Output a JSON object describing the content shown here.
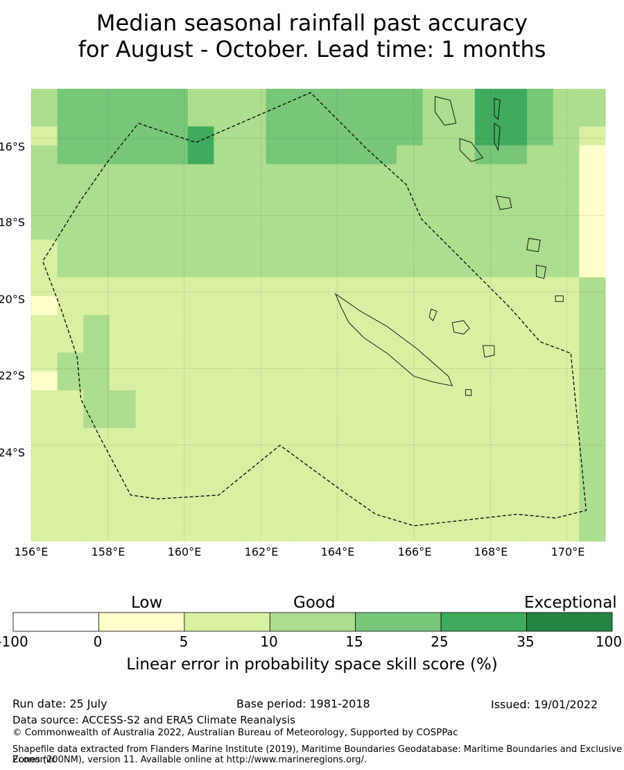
{
  "title_lines": [
    "Median seasonal rainfall past accuracy",
    "for August - October. Lead time: 1 months"
  ],
  "map": {
    "lon_range": [
      156,
      171
    ],
    "lat_range": [
      -26.5,
      -14.7
    ],
    "lon_ticks": [
      "156°E",
      "158°E",
      "160°E",
      "162°E",
      "164°E",
      "166°E",
      "168°E",
      "170°E"
    ],
    "lat_ticks": [
      "16°S",
      "18°S",
      "20°S",
      "22°S",
      "24°S"
    ],
    "ocean_grid_rows": [
      "3444443334444443355433",
      "3444443334444443355433",
      "2444445334444443355432",
      "3444445334444433344331",
      "3333333333333333333331",
      "3333333333333333333331",
      "3333333333333333333331",
      "3333333333333333333331",
      "2333333333333333333331",
      "2333333333333333333331",
      "2222222222222222222223",
      "1222222222222222222223",
      "2232222222222222222223",
      "2232222222222222222223",
      "2332222222222222222223",
      "1332222222222222222223",
      "2233222222222222222223",
      "2233222222222222222223",
      "2222222222222222222223",
      "2222222222222222222223",
      "2222222222222222222223",
      "2222222222222222222223",
      "2222222222222222222223",
      "2222222222222222222223"
    ],
    "eez_boundary": [
      [
        158.8,
        -15.6
      ],
      [
        160.3,
        -16.1
      ],
      [
        163.3,
        -14.8
      ],
      [
        164.8,
        -16.3
      ],
      [
        165.8,
        -17.2
      ],
      [
        166.2,
        -18.1
      ],
      [
        167.0,
        -18.9
      ],
      [
        167.8,
        -19.7
      ],
      [
        168.5,
        -20.4
      ],
      [
        169.3,
        -21.3
      ],
      [
        170.1,
        -21.6
      ],
      [
        170.5,
        -25.7
      ],
      [
        169.7,
        -25.9
      ],
      [
        168.7,
        -25.8
      ],
      [
        166.0,
        -26.1
      ],
      [
        165.0,
        -25.8
      ],
      [
        164.0,
        -25.1
      ],
      [
        162.5,
        -24.0
      ],
      [
        160.9,
        -25.3
      ],
      [
        159.3,
        -25.4
      ],
      [
        158.6,
        -25.3
      ],
      [
        157.8,
        -23.8
      ],
      [
        157.3,
        -22.8
      ],
      [
        157.2,
        -21.7
      ],
      [
        156.8,
        -20.5
      ],
      [
        156.3,
        -19.2
      ],
      [
        157.3,
        -17.6
      ],
      [
        158.0,
        -16.6
      ],
      [
        158.8,
        -15.6
      ]
    ],
    "islands": [
      {
        "name": "grande-terre",
        "coords": [
          [
            163.95,
            -20.05
          ],
          [
            164.6,
            -20.5
          ],
          [
            165.3,
            -20.9
          ],
          [
            166.1,
            -21.5
          ],
          [
            166.9,
            -22.2
          ],
          [
            167.0,
            -22.45
          ],
          [
            166.5,
            -22.35
          ],
          [
            166.0,
            -22.2
          ],
          [
            165.3,
            -21.6
          ],
          [
            164.7,
            -21.2
          ],
          [
            164.3,
            -20.8
          ],
          [
            164.1,
            -20.4
          ],
          [
            163.95,
            -20.05
          ]
        ]
      },
      {
        "name": "lifou",
        "coords": [
          [
            167.0,
            -20.8
          ],
          [
            167.3,
            -20.75
          ],
          [
            167.45,
            -20.95
          ],
          [
            167.3,
            -21.1
          ],
          [
            167.05,
            -21.05
          ],
          [
            167.0,
            -20.8
          ]
        ]
      },
      {
        "name": "mare",
        "coords": [
          [
            167.8,
            -21.4
          ],
          [
            168.1,
            -21.4
          ],
          [
            168.1,
            -21.65
          ],
          [
            167.85,
            -21.7
          ],
          [
            167.8,
            -21.4
          ]
        ]
      },
      {
        "name": "ouvea",
        "coords": [
          [
            166.45,
            -20.45
          ],
          [
            166.6,
            -20.5
          ],
          [
            166.5,
            -20.75
          ],
          [
            166.4,
            -20.65
          ],
          [
            166.45,
            -20.45
          ]
        ]
      },
      {
        "name": "isle-of-pines",
        "coords": [
          [
            167.35,
            -22.55
          ],
          [
            167.5,
            -22.55
          ],
          [
            167.5,
            -22.7
          ],
          [
            167.35,
            -22.7
          ],
          [
            167.35,
            -22.55
          ]
        ]
      },
      {
        "name": "espiritu-santo",
        "coords": [
          [
            166.55,
            -14.9
          ],
          [
            166.95,
            -15.0
          ],
          [
            167.1,
            -15.6
          ],
          [
            166.8,
            -15.65
          ],
          [
            166.55,
            -15.3
          ],
          [
            166.55,
            -14.9
          ]
        ]
      },
      {
        "name": "malekula",
        "coords": [
          [
            167.2,
            -16.0
          ],
          [
            167.5,
            -16.1
          ],
          [
            167.8,
            -16.5
          ],
          [
            167.5,
            -16.6
          ],
          [
            167.2,
            -16.3
          ],
          [
            167.2,
            -16.0
          ]
        ]
      },
      {
        "name": "efate",
        "coords": [
          [
            168.15,
            -17.5
          ],
          [
            168.5,
            -17.55
          ],
          [
            168.55,
            -17.8
          ],
          [
            168.25,
            -17.85
          ],
          [
            168.15,
            -17.5
          ]
        ]
      },
      {
        "name": "erromango",
        "coords": [
          [
            169.0,
            -18.6
          ],
          [
            169.3,
            -18.65
          ],
          [
            169.25,
            -18.95
          ],
          [
            168.95,
            -18.9
          ],
          [
            169.0,
            -18.6
          ]
        ]
      },
      {
        "name": "tanna",
        "coords": [
          [
            169.2,
            -19.3
          ],
          [
            169.45,
            -19.35
          ],
          [
            169.4,
            -19.65
          ],
          [
            169.2,
            -19.6
          ],
          [
            169.2,
            -19.3
          ]
        ]
      },
      {
        "name": "maewo",
        "coords": [
          [
            168.1,
            -14.95
          ],
          [
            168.25,
            -15.0
          ],
          [
            168.2,
            -15.5
          ],
          [
            168.1,
            -15.4
          ],
          [
            168.1,
            -14.95
          ]
        ]
      },
      {
        "name": "pentecost",
        "coords": [
          [
            168.1,
            -15.6
          ],
          [
            168.25,
            -15.7
          ],
          [
            168.2,
            -16.3
          ],
          [
            168.1,
            -16.1
          ],
          [
            168.1,
            -15.6
          ]
        ]
      },
      {
        "name": "aneityum",
        "coords": [
          [
            169.7,
            -20.1
          ],
          [
            169.9,
            -20.1
          ],
          [
            169.9,
            -20.25
          ],
          [
            169.7,
            -20.25
          ],
          [
            169.7,
            -20.1
          ]
        ]
      }
    ],
    "colors": {
      "land_stroke": "#000000",
      "boundary": "#000000",
      "grid": "#333333"
    }
  },
  "colorbar": {
    "category_labels": [
      "Low",
      "Good",
      "Exceptional"
    ],
    "ticks": [
      "-100",
      "0",
      "5",
      "10",
      "15",
      "25",
      "35",
      "100"
    ],
    "colors": [
      "#ffffff",
      "#ffffcc",
      "#d9f0a3",
      "#addd8e",
      "#78c679",
      "#41ab5d",
      "#238443"
    ],
    "label": "Linear error in probability space skill score (%)"
  },
  "footer": {
    "run_date": "Run date: 25 July",
    "base_period": "Base period: 1981-2018",
    "issued": "Issued: 19/01/2022",
    "data_source": "Data source: ACCESS-S2 and ERA5 Climate Reanalysis",
    "copyright": "© Commonwealth of Australia 2022, Australian Bureau of Meteorology, Supported by COSPPac",
    "shapefile_1": "Shapefile data extracted from Flanders Marine Institute (2019), Maritime Boundaries Geodatabase: Maritime Boundaries and Exclusive Economic",
    "shapefile_2": "Zones (200NM), version 11. Available online at http://www.marineregions.org/."
  }
}
